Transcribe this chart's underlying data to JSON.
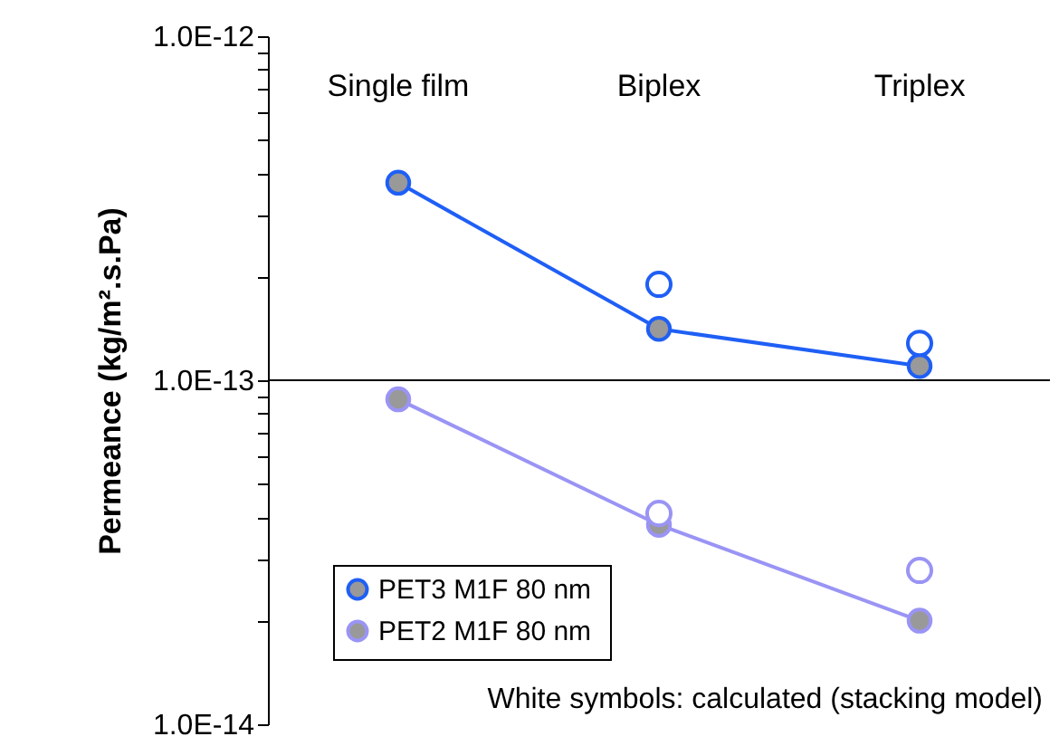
{
  "chart_data": {
    "type": "line",
    "ylabel": "Permeance  (kg/m².s.Pa)",
    "categories": [
      "Single film",
      "Biplex",
      "Triplex"
    ],
    "series": [
      {
        "name": "PET3  M1F 80 nm",
        "color": "#1f5ff5",
        "values": [
          3.75e-13,
          1.41e-13,
          1.1e-13
        ],
        "marker": "circle"
      },
      {
        "name": "PET2  M1F 80 nm",
        "color": "#9a94f5",
        "values": [
          8.8e-14,
          3.8e-14,
          2e-14
        ],
        "marker": "circle"
      },
      {
        "type": "scatter",
        "color": "#1f5ff5",
        "values": [
          null,
          1.9e-13,
          1.28e-13
        ],
        "marker": "circle"
      },
      {
        "type": "scatter",
        "color": "#9a94f5",
        "values": [
          null,
          4.1e-14,
          2.8e-14
        ],
        "marker": "circle"
      }
    ],
    "log": "y",
    "ylim": [
      1e-14,
      1e-12
    ],
    "yticks": [
      {
        "value": 1e-14,
        "label": "1.0E-14"
      },
      {
        "value": 2e-14,
        "label": null
      },
      {
        "value": 3e-14,
        "label": null
      },
      {
        "value": 4e-14,
        "label": null
      },
      {
        "value": 5e-14,
        "label": null
      },
      {
        "value": 6e-14,
        "label": null
      },
      {
        "value": 7e-14,
        "label": null
      },
      {
        "value": 8e-14,
        "label": null
      },
      {
        "value": 9e-14,
        "label": null
      },
      {
        "value": 1e-13,
        "label": "1.0E-13"
      },
      {
        "value": 2e-13,
        "label": null
      },
      {
        "value": 3e-13,
        "label": null
      },
      {
        "value": 4e-13,
        "label": null
      },
      {
        "value": 5e-13,
        "label": null
      },
      {
        "value": 6e-13,
        "label": null
      },
      {
        "value": 7e-13,
        "label": null
      },
      {
        "value": 8e-13,
        "label": null
      },
      {
        "value": 9e-13,
        "label": null
      },
      {
        "value": 1e-12,
        "label": "1.0E-12"
      }
    ],
    "ref_lines": [
      {
        "axis": "y",
        "value": 1e-13,
        "color": "#000000"
      }
    ],
    "legend": "bottom left",
    "grid": false,
    "annotations": [
      "White symbols: calculated (stacking model)"
    ]
  }
}
